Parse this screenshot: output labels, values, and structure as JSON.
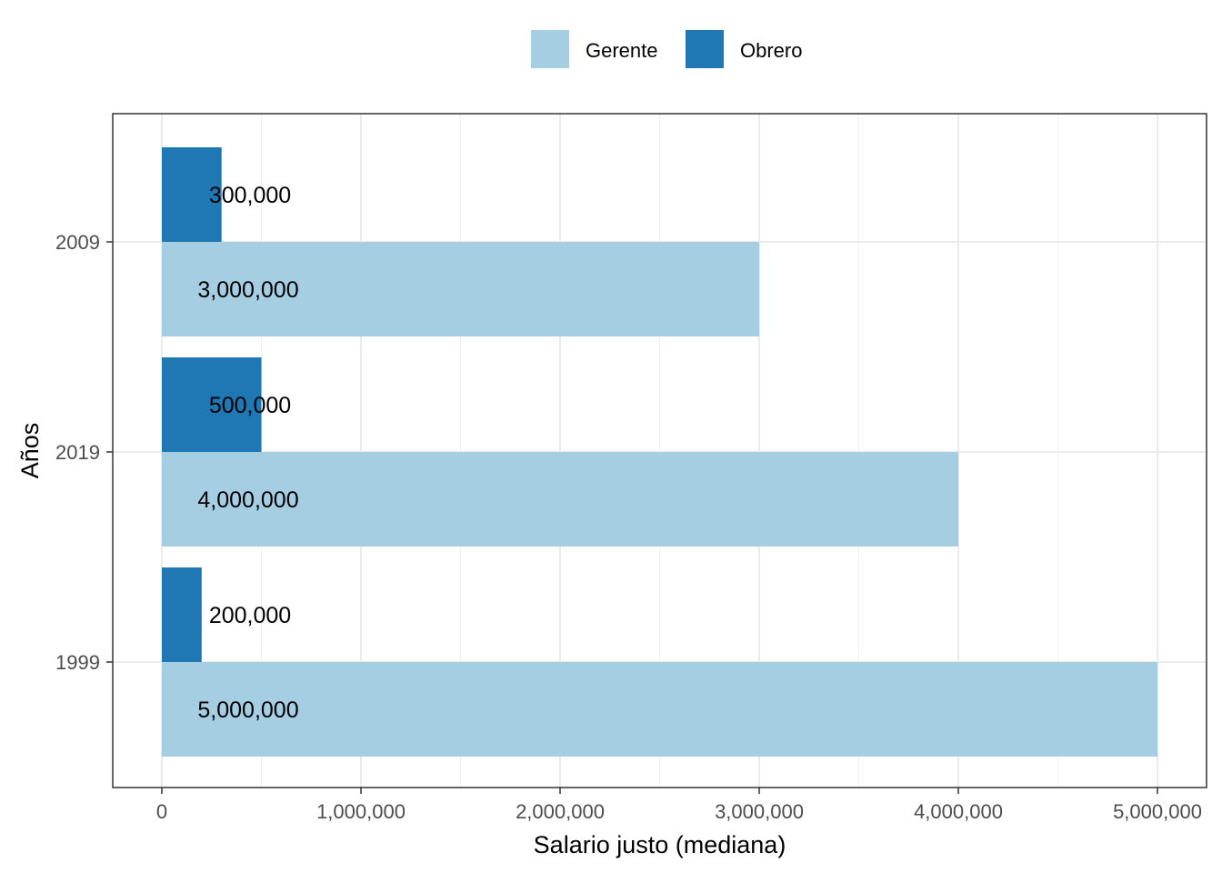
{
  "chart_data": {
    "type": "bar",
    "orientation": "horizontal",
    "categories": [
      "2009",
      "2019",
      "1999"
    ],
    "series": [
      {
        "name": "Gerente",
        "color": "#A6CEE3",
        "values": [
          3000000,
          4000000,
          5000000
        ],
        "labels": [
          "3,000,000",
          "4,000,000",
          "5,000,000"
        ]
      },
      {
        "name": "Obrero",
        "color": "#1F78B4",
        "values": [
          300000,
          500000,
          200000
        ],
        "labels": [
          "300,000",
          "500,000",
          "200,000"
        ]
      }
    ],
    "xlabel": "Salario justo (mediana)",
    "ylabel": "Años",
    "xlim": [
      0,
      5000000
    ],
    "xticks": [
      0,
      1000000,
      2000000,
      3000000,
      4000000,
      5000000
    ],
    "xtick_labels": [
      "0",
      "1,000,000",
      "2,000,000",
      "3,000,000",
      "4,000,000",
      "5,000,000"
    ],
    "grid": true,
    "legend_position": "top"
  }
}
